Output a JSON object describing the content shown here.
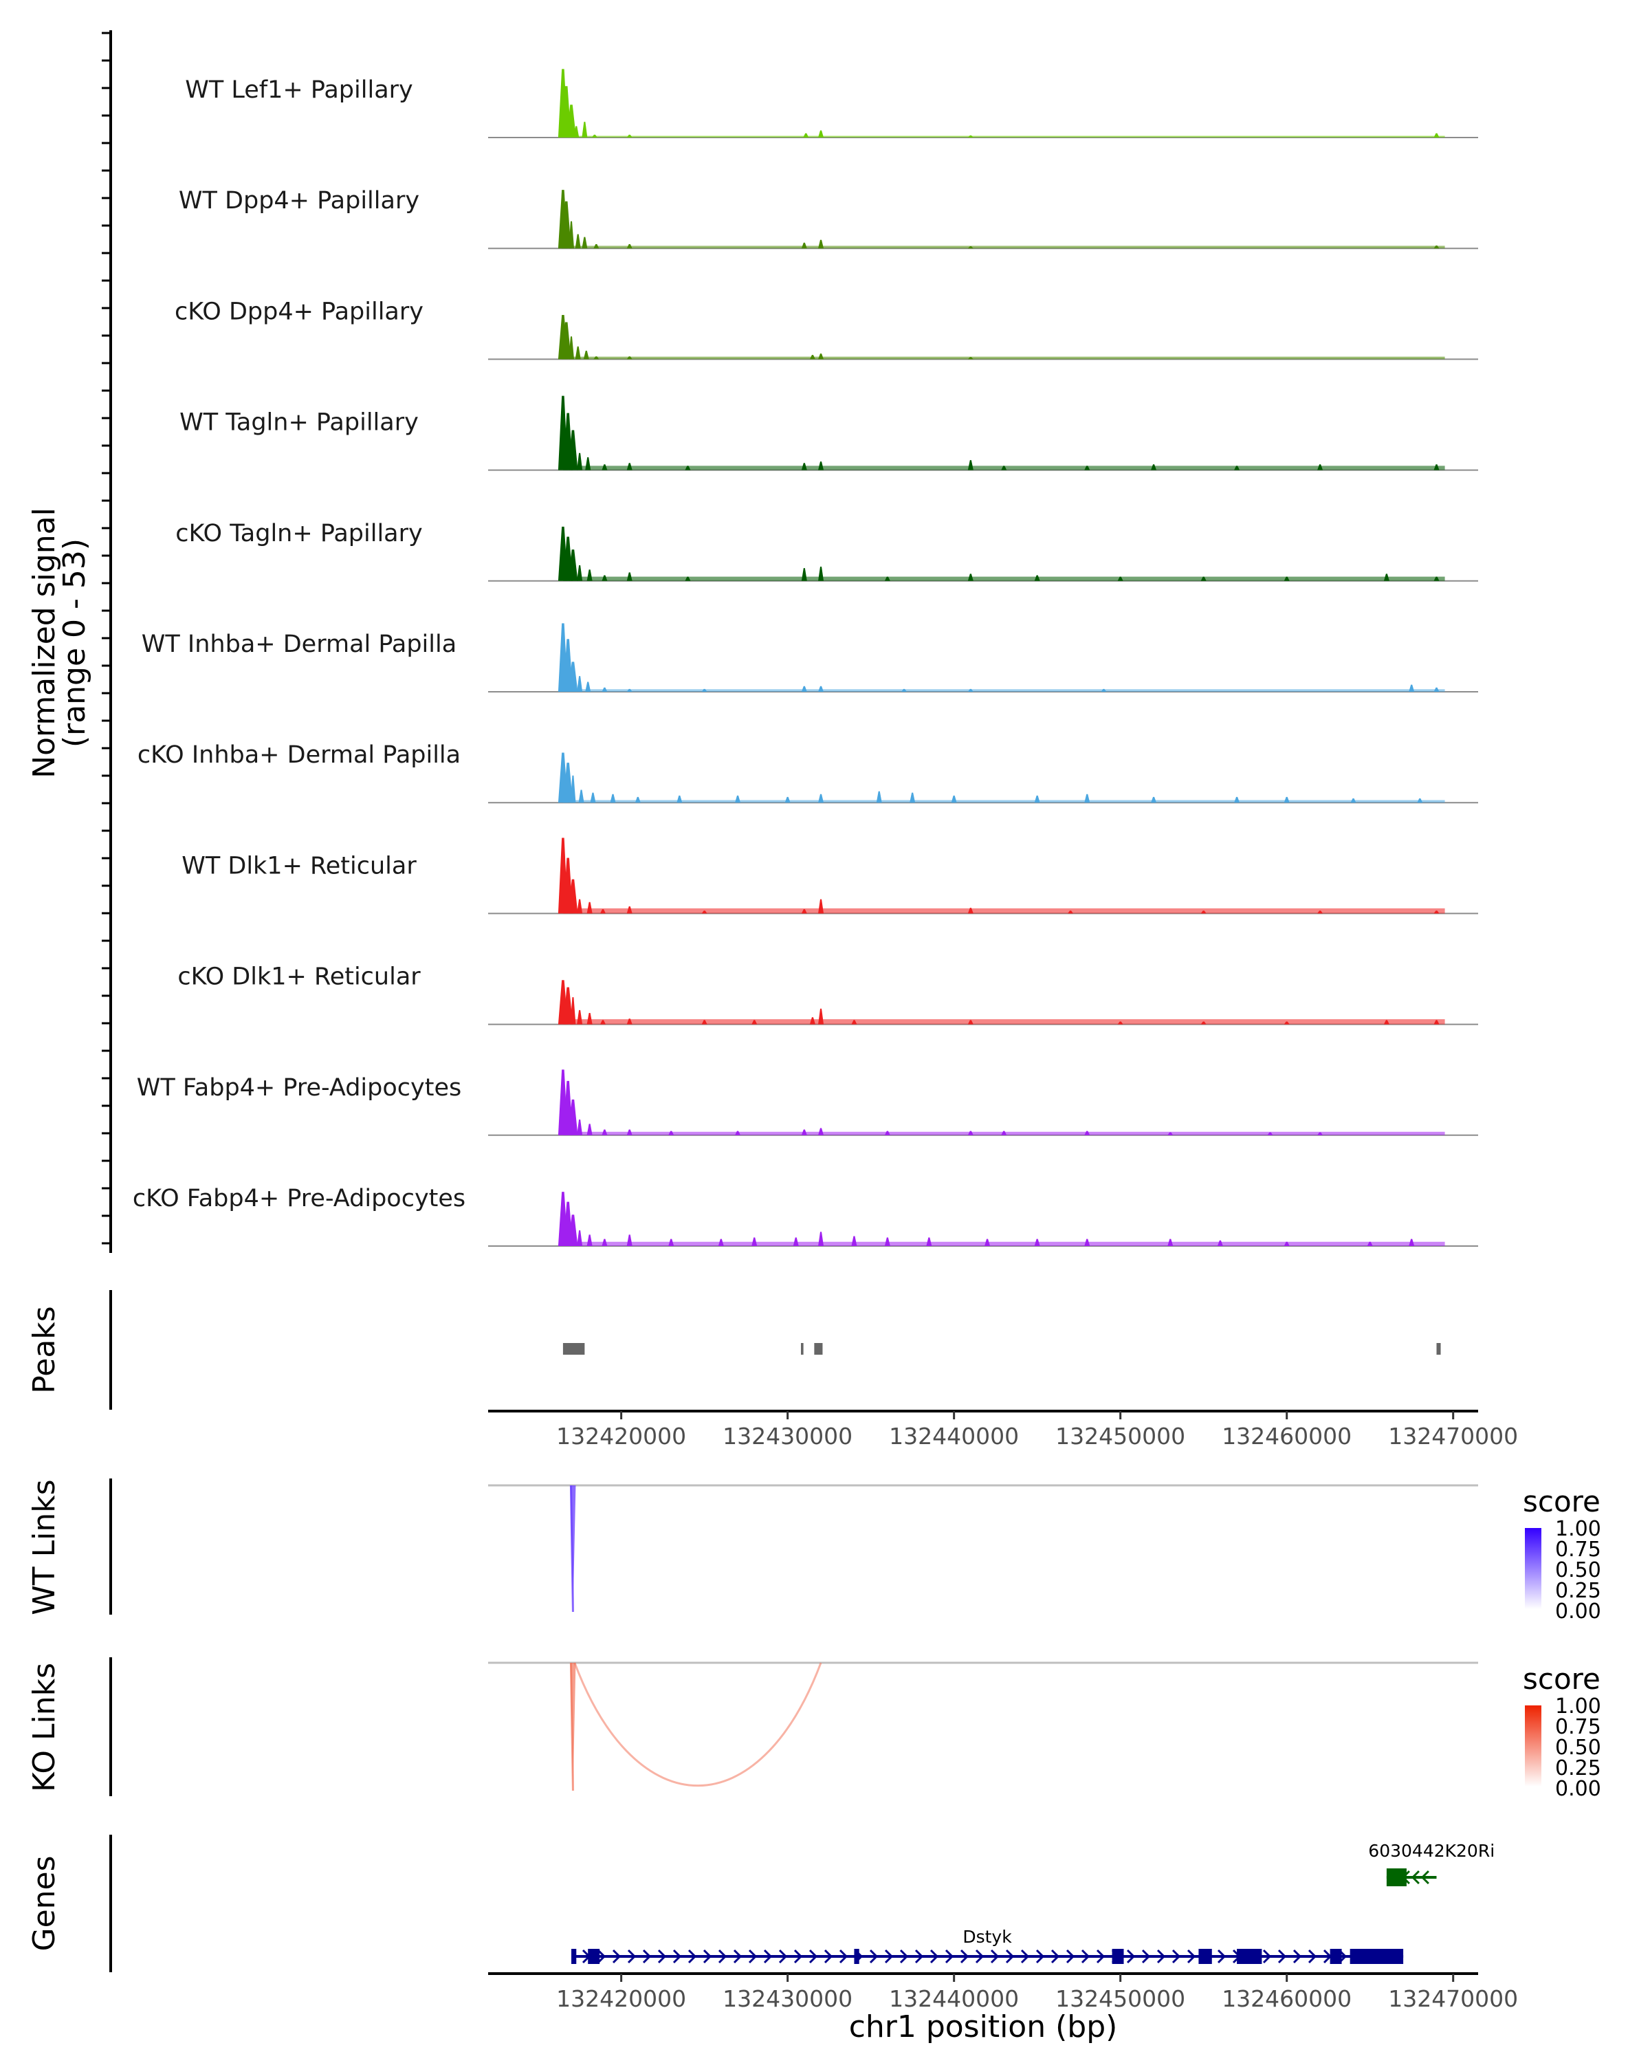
{
  "chart_data": {
    "type": "genome-browser",
    "region": {
      "chrom": "chr1",
      "start": 132412000,
      "end": 132471500
    },
    "coverage": {
      "ylabel": "Normalized signal",
      "range_label": "(range 0 - 53)",
      "ylim": [
        0,
        53
      ],
      "tracks": [
        {
          "name": "WT Lef1+ Papillary",
          "color": "#6ccc00",
          "baseline": 0.2,
          "peaks": [
            [
              132416500,
              48
            ],
            [
              132416700,
              36
            ],
            [
              132417000,
              23
            ],
            [
              132417300,
              8
            ],
            [
              132417800,
              11
            ],
            [
              132418400,
              2
            ],
            [
              132420500,
              2
            ],
            [
              132431100,
              3
            ],
            [
              132432000,
              5
            ],
            [
              132441000,
              1.5
            ],
            [
              132469000,
              3
            ]
          ]
        },
        {
          "name": "WT Dpp4+ Papillary",
          "color": "#4a8800",
          "baseline": 0.3,
          "peaks": [
            [
              132416500,
              41
            ],
            [
              132416700,
              33
            ],
            [
              132417000,
              19
            ],
            [
              132417400,
              10
            ],
            [
              132417800,
              8
            ],
            [
              132418500,
              3
            ],
            [
              132420500,
              3
            ],
            [
              132431000,
              4
            ],
            [
              132432000,
              6
            ],
            [
              132441000,
              1.5
            ],
            [
              132469000,
              2
            ]
          ]
        },
        {
          "name": "cKO Dpp4+ Papillary",
          "color": "#4a8800",
          "baseline": 0.3,
          "peaks": [
            [
              132416500,
              31
            ],
            [
              132416700,
              26
            ],
            [
              132417000,
              16
            ],
            [
              132417400,
              9
            ],
            [
              132417900,
              6
            ],
            [
              132418500,
              2
            ],
            [
              132420500,
              2
            ],
            [
              132431500,
              3
            ],
            [
              132432000,
              4
            ],
            [
              132441000,
              1.5
            ]
          ]
        },
        {
          "name": "WT Tagln+ Papillary",
          "color": "#005a00",
          "baseline": 0.5,
          "peaks": [
            [
              132416500,
              52
            ],
            [
              132416800,
              40
            ],
            [
              132417100,
              28
            ],
            [
              132417500,
              12
            ],
            [
              132418000,
              9
            ],
            [
              132419000,
              4
            ],
            [
              132420500,
              5
            ],
            [
              132424000,
              3
            ],
            [
              132431000,
              5
            ],
            [
              132432000,
              6
            ],
            [
              132441000,
              7
            ],
            [
              132443000,
              3
            ],
            [
              132448000,
              3
            ],
            [
              132452000,
              4
            ],
            [
              132457000,
              3
            ],
            [
              132462000,
              4
            ],
            [
              132469000,
              4
            ]
          ]
        },
        {
          "name": "cKO Tagln+ Papillary",
          "color": "#005a00",
          "baseline": 0.5,
          "peaks": [
            [
              132416500,
              38
            ],
            [
              132416800,
              31
            ],
            [
              132417100,
              22
            ],
            [
              132417500,
              11
            ],
            [
              132418100,
              8
            ],
            [
              132419000,
              4
            ],
            [
              132420500,
              6
            ],
            [
              132424000,
              3
            ],
            [
              132431000,
              9
            ],
            [
              132432000,
              10
            ],
            [
              132436000,
              3
            ],
            [
              132441000,
              5
            ],
            [
              132445000,
              4
            ],
            [
              132450000,
              3
            ],
            [
              132455000,
              3
            ],
            [
              132460000,
              3
            ],
            [
              132466000,
              5
            ],
            [
              132469000,
              3
            ]
          ]
        },
        {
          "name": "WT Inhba+ Dermal Papilla",
          "color": "#4aa6e0",
          "baseline": 0.3,
          "peaks": [
            [
              132416500,
              48
            ],
            [
              132416800,
              37
            ],
            [
              132417100,
              21
            ],
            [
              132417500,
              11
            ],
            [
              132418000,
              7
            ],
            [
              132419000,
              3
            ],
            [
              132420500,
              2
            ],
            [
              132425000,
              2
            ],
            [
              132431000,
              4
            ],
            [
              132432000,
              4
            ],
            [
              132437000,
              2
            ],
            [
              132441000,
              2
            ],
            [
              132449000,
              2
            ],
            [
              132467500,
              5
            ],
            [
              132469000,
              3
            ]
          ]
        },
        {
          "name": "cKO Inhba+ Dermal Papilla",
          "color": "#4aa6e0",
          "baseline": 0.3,
          "peaks": [
            [
              132416500,
              35
            ],
            [
              132416800,
              28
            ],
            [
              132417100,
              19
            ],
            [
              132417600,
              9
            ],
            [
              132418300,
              7
            ],
            [
              132419500,
              6
            ],
            [
              132421000,
              4
            ],
            [
              132423500,
              5
            ],
            [
              132427000,
              5
            ],
            [
              132430000,
              4
            ],
            [
              132432000,
              6
            ],
            [
              132435500,
              8
            ],
            [
              132437500,
              7
            ],
            [
              132440000,
              5
            ],
            [
              132445000,
              5
            ],
            [
              132448000,
              6
            ],
            [
              132452000,
              4
            ],
            [
              132457000,
              4
            ],
            [
              132460000,
              4
            ],
            [
              132464000,
              3
            ],
            [
              132468000,
              3
            ]
          ]
        },
        {
          "name": "WT Dlk1+ Reticular",
          "color": "#ee2020",
          "baseline": 0.6,
          "peaks": [
            [
              132416500,
              53
            ],
            [
              132416800,
              39
            ],
            [
              132417100,
              24
            ],
            [
              132417500,
              10
            ],
            [
              132418100,
              8
            ],
            [
              132418900,
              3
            ],
            [
              132420500,
              5
            ],
            [
              132425000,
              2
            ],
            [
              132431000,
              3
            ],
            [
              132432000,
              10
            ],
            [
              132441000,
              4
            ],
            [
              132447000,
              2
            ],
            [
              132455000,
              2
            ],
            [
              132462000,
              2
            ],
            [
              132469000,
              2
            ]
          ]
        },
        {
          "name": "cKO Dlk1+ Reticular",
          "color": "#ee2020",
          "baseline": 0.6,
          "peaks": [
            [
              132416500,
              31
            ],
            [
              132416800,
              26
            ],
            [
              132417100,
              19
            ],
            [
              132417500,
              10
            ],
            [
              132418100,
              8
            ],
            [
              132418900,
              3
            ],
            [
              132420500,
              4
            ],
            [
              132425000,
              3
            ],
            [
              132428000,
              3
            ],
            [
              132431500,
              5
            ],
            [
              132432000,
              11
            ],
            [
              132434000,
              3
            ],
            [
              132441000,
              3
            ],
            [
              132450000,
              2
            ],
            [
              132455000,
              2
            ],
            [
              132460000,
              2
            ],
            [
              132466000,
              3
            ],
            [
              132469000,
              3
            ]
          ]
        },
        {
          "name": "WT Fabp4+ Pre-Adipocytes",
          "color": "#a020f0",
          "baseline": 0.4,
          "peaks": [
            [
              132416500,
              46
            ],
            [
              132416800,
              38
            ],
            [
              132417100,
              25
            ],
            [
              132417500,
              11
            ],
            [
              132418100,
              8
            ],
            [
              132419000,
              4
            ],
            [
              132420500,
              4
            ],
            [
              132423000,
              3
            ],
            [
              132427000,
              3
            ],
            [
              132431000,
              4
            ],
            [
              132432000,
              5
            ],
            [
              132436000,
              3
            ],
            [
              132441000,
              3
            ],
            [
              132443000,
              3
            ],
            [
              132448000,
              3
            ],
            [
              132453000,
              2
            ],
            [
              132459000,
              2
            ],
            [
              132462000,
              2
            ]
          ]
        },
        {
          "name": "cKO Fabp4+ Pre-Adipocytes",
          "color": "#a020f0",
          "baseline": 0.5,
          "peaks": [
            [
              132416500,
              38
            ],
            [
              132416800,
              31
            ],
            [
              132417100,
              22
            ],
            [
              132417500,
              11
            ],
            [
              132418100,
              8
            ],
            [
              132419000,
              5
            ],
            [
              132420500,
              8
            ],
            [
              132423000,
              5
            ],
            [
              132426000,
              5
            ],
            [
              132428000,
              6
            ],
            [
              132430500,
              6
            ],
            [
              132432000,
              10
            ],
            [
              132434000,
              7
            ],
            [
              132436000,
              6
            ],
            [
              132438500,
              6
            ],
            [
              132442000,
              5
            ],
            [
              132445000,
              5
            ],
            [
              132448000,
              5
            ],
            [
              132453000,
              5
            ],
            [
              132456000,
              4
            ],
            [
              132460000,
              3
            ],
            [
              132465000,
              3
            ],
            [
              132467500,
              5
            ]
          ]
        }
      ]
    },
    "peaks_track": {
      "label": "Peaks",
      "color": "#666666",
      "intervals": [
        [
          132416500,
          132417800
        ],
        [
          132430800,
          132430950
        ],
        [
          132431600,
          132432100
        ],
        [
          132469000,
          132469250
        ]
      ]
    },
    "x_axis": {
      "ticks": [
        132420000,
        132430000,
        132440000,
        132450000,
        132460000,
        132470000
      ],
      "tick_labels": [
        "132420000",
        "132430000",
        "132440000",
        "132450000",
        "132460000",
        "132470000"
      ],
      "label": "chr1 position (bp)"
    },
    "links": [
      {
        "label": "WT Links",
        "legend_title": "score",
        "legend_colors": [
          "#ffffff",
          "#3300ff"
        ],
        "legend_labels": [
          "1.00",
          "0.75",
          "0.50",
          "0.25",
          "0.00"
        ],
        "arcs": [
          {
            "start": 132417000,
            "end": 132417200,
            "score": 0.72
          }
        ]
      },
      {
        "label": "KO Links",
        "legend_title": "score",
        "legend_colors": [
          "#ffffff",
          "#ee2200"
        ],
        "legend_labels": [
          "1.00",
          "0.75",
          "0.50",
          "0.25",
          "0.00"
        ],
        "arcs": [
          {
            "start": 132417000,
            "end": 132417200,
            "score": 0.55
          },
          {
            "start": 132417200,
            "end": 132432000,
            "score": 0.3
          }
        ]
      }
    ],
    "genes": {
      "label": "Genes",
      "items": [
        {
          "name": "Dstyk",
          "strand": "+",
          "color": "#00008b",
          "start": 132417000,
          "end": 132467000,
          "exons": [
            [
              132417000,
              132417300
            ],
            [
              132418000,
              132418700
            ],
            [
              132434000,
              132434300
            ],
            [
              132449500,
              132450200
            ],
            [
              132454700,
              132455500
            ],
            [
              132457000,
              132458500
            ],
            [
              132462600,
              132463300
            ],
            [
              132463800,
              132467000
            ]
          ]
        },
        {
          "name": "6030442K20Rik",
          "display_name": "6030442K20Ri",
          "strand": "-",
          "color": "#006400",
          "start": 132466000,
          "end": 132469000,
          "exons": [
            [
              132466000,
              132467200
            ]
          ]
        }
      ]
    }
  }
}
